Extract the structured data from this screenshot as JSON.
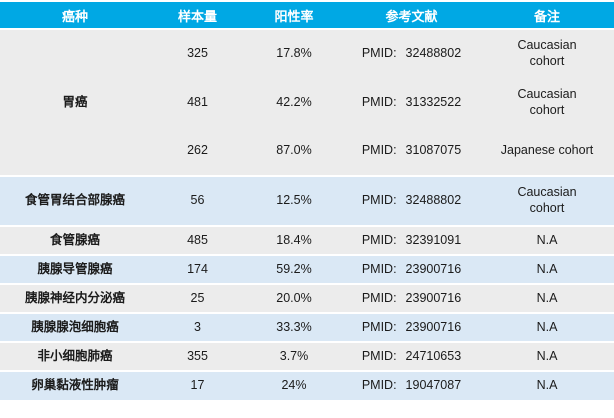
{
  "table": {
    "colors": {
      "header_bg": "#00a8e4",
      "header_text": "#ffffff",
      "row_gray": "#ececec",
      "row_blue": "#dae8f5",
      "text": "#1b1b1b"
    },
    "columns": [
      {
        "label": "癌种"
      },
      {
        "label": "样本量"
      },
      {
        "label": "阳性率"
      },
      {
        "label": "参考文献"
      },
      {
        "label": "备注"
      }
    ],
    "groups": [
      {
        "cancer": "胃癌",
        "shade": "gray",
        "rows": [
          {
            "samples": "325",
            "rate": "17.8%",
            "ref_label": "PMID:",
            "ref_id": "32488802",
            "remark": "Caucasian\ncohort"
          },
          {
            "samples": "481",
            "rate": "42.2%",
            "ref_label": "PMID:",
            "ref_id": "31332522",
            "remark": "Caucasian\ncohort"
          },
          {
            "samples": "262",
            "rate": "87.0%",
            "ref_label": "PMID:",
            "ref_id": "31087075",
            "remark": "Japanese cohort"
          }
        ]
      },
      {
        "cancer": "食管胃结合部腺癌",
        "shade": "blue",
        "rows": [
          {
            "samples": "56",
            "rate": "12.5%",
            "ref_label": "PMID:",
            "ref_id": "32488802",
            "remark": "Caucasian\ncohort"
          }
        ]
      },
      {
        "cancer": "食管腺癌",
        "shade": "gray",
        "rows": [
          {
            "samples": "485",
            "rate": "18.4%",
            "ref_label": "PMID:",
            "ref_id": "32391091",
            "remark": "N.A"
          }
        ]
      },
      {
        "cancer": "胰腺导管腺癌",
        "shade": "blue",
        "rows": [
          {
            "samples": "174",
            "rate": "59.2%",
            "ref_label": "PMID:",
            "ref_id": "23900716",
            "remark": "N.A"
          }
        ]
      },
      {
        "cancer": "胰腺神经内分泌癌",
        "shade": "gray",
        "rows": [
          {
            "samples": "25",
            "rate": "20.0%",
            "ref_label": "PMID:",
            "ref_id": "23900716",
            "remark": "N.A"
          }
        ]
      },
      {
        "cancer": "胰腺腺泡细胞癌",
        "shade": "blue",
        "rows": [
          {
            "samples": "3",
            "rate": "33.3%",
            "ref_label": "PMID:",
            "ref_id": "23900716",
            "remark": "N.A"
          }
        ]
      },
      {
        "cancer": "非小细胞肺癌",
        "shade": "gray",
        "rows": [
          {
            "samples": "355",
            "rate": "3.7%",
            "ref_label": "PMID:",
            "ref_id": "24710653",
            "remark": "N.A"
          }
        ]
      },
      {
        "cancer": "卵巢黏液性肿瘤",
        "shade": "blue",
        "rows": [
          {
            "samples": "17",
            "rate": "24%",
            "ref_label": "PMID:",
            "ref_id": "19047087",
            "remark": "N.A"
          }
        ]
      }
    ]
  }
}
